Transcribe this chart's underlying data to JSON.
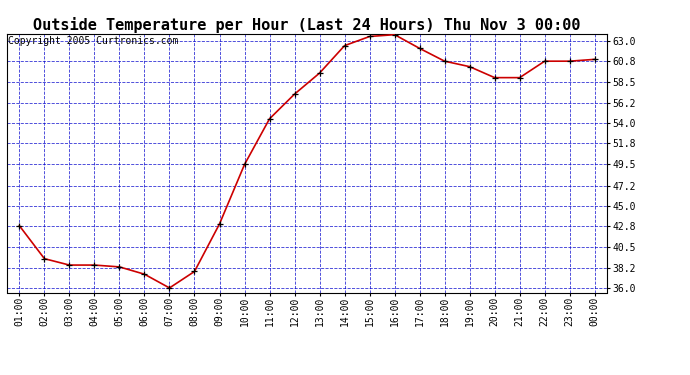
{
  "title": "Outside Temperature per Hour (Last 24 Hours) Thu Nov 3 00:00",
  "copyright": "Copyright 2005 Curtronics.com",
  "x_labels": [
    "01:00",
    "02:00",
    "03:00",
    "04:00",
    "05:00",
    "06:00",
    "07:00",
    "08:00",
    "09:00",
    "10:00",
    "11:00",
    "12:00",
    "13:00",
    "14:00",
    "15:00",
    "16:00",
    "17:00",
    "18:00",
    "19:00",
    "20:00",
    "21:00",
    "22:00",
    "23:00",
    "00:00"
  ],
  "y_values": [
    42.8,
    39.2,
    38.5,
    38.5,
    38.3,
    37.5,
    36.0,
    37.8,
    43.0,
    49.5,
    54.5,
    57.2,
    59.5,
    62.5,
    63.5,
    63.7,
    62.2,
    60.8,
    60.2,
    59.0,
    59.0,
    60.8,
    60.8,
    61.0
  ],
  "line_color": "#cc0000",
  "marker_color": "#000000",
  "background_color": "#ffffff",
  "plot_bg_color": "#ffffff",
  "grid_color": "#0000cc",
  "title_fontsize": 11,
  "copyright_fontsize": 7,
  "tick_fontsize": 7,
  "ylim": [
    35.5,
    63.8
  ],
  "yticks": [
    36.0,
    38.2,
    40.5,
    42.8,
    45.0,
    47.2,
    49.5,
    51.8,
    54.0,
    56.2,
    58.5,
    60.8,
    63.0
  ]
}
